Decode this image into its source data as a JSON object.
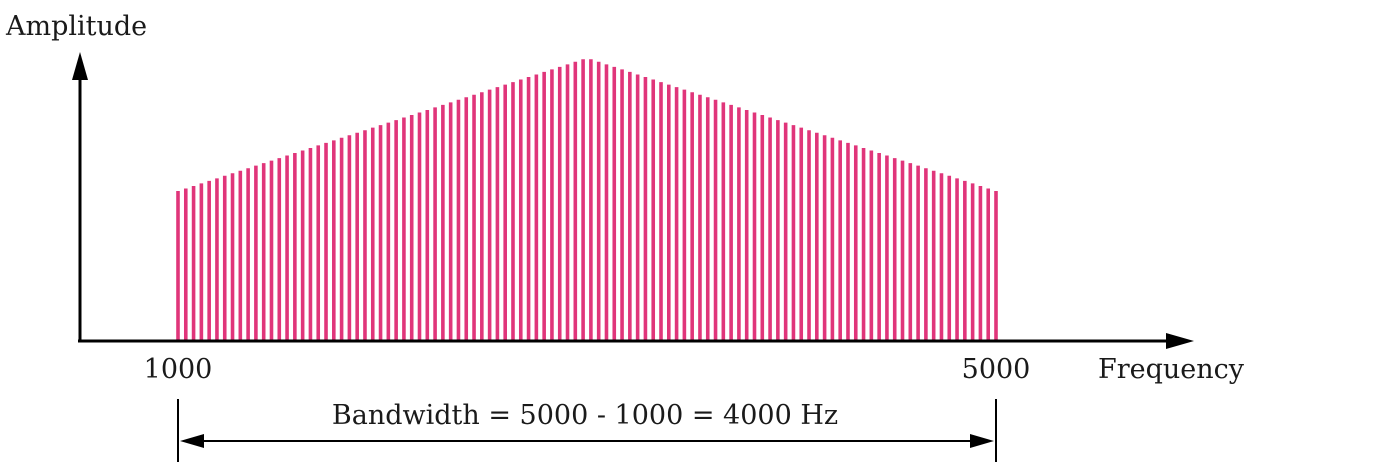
{
  "axis_labels": {
    "y": "Amplitude",
    "x": "Frequency"
  },
  "ticks": {
    "start": "1000",
    "end": "5000"
  },
  "bandwidth_label": "Bandwidth = 5000 - 1000 = 4000 Hz",
  "colors": {
    "spectrum": "#e0357a",
    "axis": "#000000"
  },
  "chart_data": {
    "type": "bar",
    "x_range": [
      1000,
      5000
    ],
    "peak_frequency": 3000,
    "relative_amplitude": {
      "at_1000": 0.53,
      "at_3000": 1.0,
      "at_5000": 0.53
    }
  }
}
